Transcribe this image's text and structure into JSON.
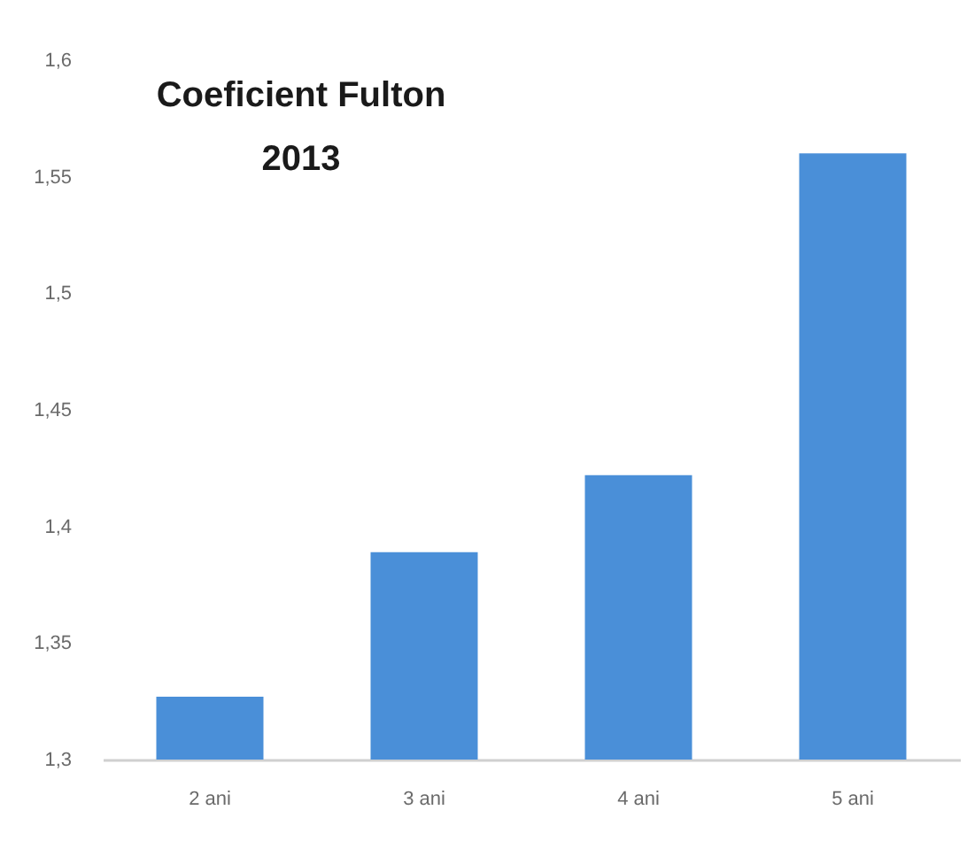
{
  "chart_data": {
    "type": "bar",
    "title": "Coeficient Fulton\n2013",
    "categories": [
      "2 ani",
      "3 ani",
      "4 ani",
      "5 ani"
    ],
    "values": [
      1.327,
      1.389,
      1.422,
      1.56
    ],
    "color": "#4a8fd8",
    "ylim": [
      1.3,
      1.6
    ],
    "yticks": [
      {
        "value": 1.3,
        "label": "1,3"
      },
      {
        "value": 1.35,
        "label": "1,35"
      },
      {
        "value": 1.4,
        "label": "1,4"
      },
      {
        "value": 1.45,
        "label": "1,45"
      },
      {
        "value": 1.5,
        "label": "1,5"
      },
      {
        "value": 1.55,
        "label": "1,55"
      },
      {
        "value": 1.6,
        "label": "1,6"
      }
    ]
  }
}
